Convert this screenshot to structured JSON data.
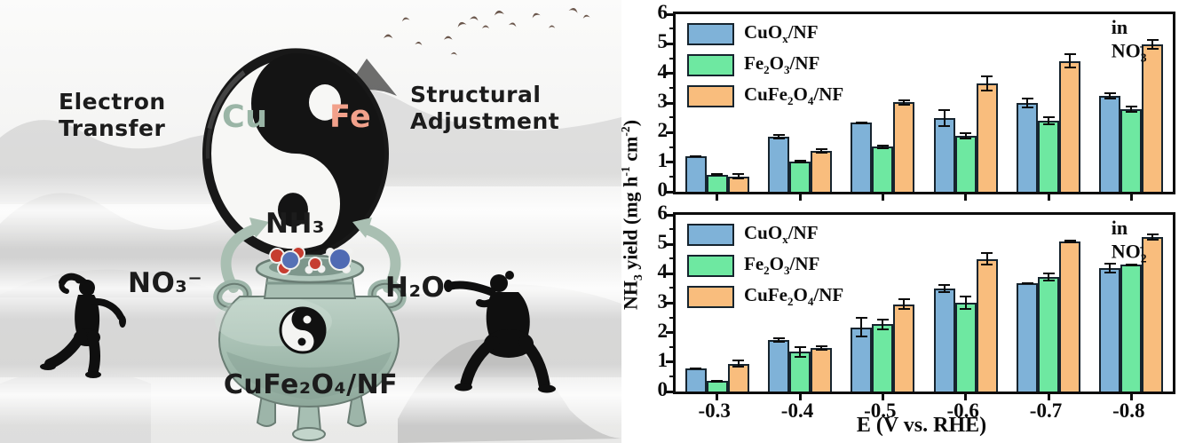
{
  "illustration": {
    "electron_transfer": {
      "line1": "Electron",
      "line2": "Transfer"
    },
    "structural_adjustment": {
      "line1": "Structural",
      "line2": "Adjustment"
    },
    "cu": "Cu",
    "fe": "Fe",
    "nh3": "NH₃",
    "no3": "NO₃⁻",
    "h2o": "H₂O",
    "catalyst": "CuFe₂O₄/NF",
    "icons": {
      "yinyang": "☯",
      "bird": "﹀",
      "cauldron": "ding-vessel",
      "taichi": "martial-arts-silhouette"
    }
  },
  "palette": {
    "bar_blue": "#7FB2D8",
    "bar_green": "#6EE8A1",
    "bar_orange": "#F9BD7D",
    "bar_border": "#16242e",
    "axis": "#0c0c0c",
    "cu_text": "#9ab5a6",
    "fe_text": "#f2a18b",
    "arrow": "#a9bfb2",
    "pot": "#a7bfb2"
  },
  "chart_data": [
    {
      "type": "bar",
      "annotation": "in NO_{3}^{-}",
      "ylabel": "NH_{3} yield (mg h^{-1} cm^{-2})",
      "ylim": [
        0,
        6
      ],
      "ytick_step": 1,
      "grid": false,
      "legend_position": "top-left",
      "categories": [
        "-0.3",
        "-0.4",
        "-0.5",
        "-0.6",
        "-0.7",
        "-0.8"
      ],
      "show_x_labels": false,
      "series": [
        {
          "name": "CuO_{x}/NF",
          "color": "#7FB2D8",
          "values": [
            1.2,
            1.85,
            2.33,
            2.5,
            3.0,
            3.25
          ],
          "errors": [
            0.04,
            0.09,
            0.05,
            0.3,
            0.18,
            0.12
          ]
        },
        {
          "name": "Fe_{2}O_{3}/NF",
          "color": "#6EE8A1",
          "values": [
            0.58,
            1.02,
            1.52,
            1.9,
            2.4,
            2.8
          ],
          "errors": [
            0.04,
            0.05,
            0.08,
            0.12,
            0.15,
            0.12
          ]
        },
        {
          "name": "CuFe_{2}O_{4}/NF",
          "color": "#F9BD7D",
          "values": [
            0.52,
            1.38,
            3.02,
            3.65,
            4.42,
            4.97
          ],
          "errors": [
            0.1,
            0.1,
            0.1,
            0.27,
            0.25,
            0.18
          ]
        }
      ]
    },
    {
      "type": "bar",
      "annotation": "in NO_{2}^{-}",
      "xlabel": "E (V vs. RHE)",
      "ylim": [
        0,
        6
      ],
      "ytick_step": 1,
      "grid": false,
      "legend_position": "top-left",
      "categories": [
        "-0.3",
        "-0.4",
        "-0.5",
        "-0.6",
        "-0.7",
        "-0.8"
      ],
      "show_x_labels": true,
      "series": [
        {
          "name": "CuO_{x}/NF",
          "color": "#7FB2D8",
          "values": [
            0.78,
            1.75,
            2.18,
            3.5,
            3.68,
            4.2
          ],
          "errors": [
            0.04,
            0.1,
            0.35,
            0.15,
            0.04,
            0.18
          ]
        },
        {
          "name": "Fe_{2}O_{3}/NF",
          "color": "#6EE8A1",
          "values": [
            0.35,
            1.35,
            2.28,
            3.02,
            3.88,
            4.3
          ],
          "errors": [
            0.02,
            0.2,
            0.2,
            0.25,
            0.15,
            0.05
          ]
        },
        {
          "name": "CuFe_{2}O_{4}/NF",
          "color": "#F9BD7D",
          "values": [
            0.95,
            1.48,
            2.97,
            4.5,
            5.1,
            5.25
          ],
          "errors": [
            0.15,
            0.1,
            0.2,
            0.22,
            0.05,
            0.12
          ]
        }
      ]
    }
  ]
}
